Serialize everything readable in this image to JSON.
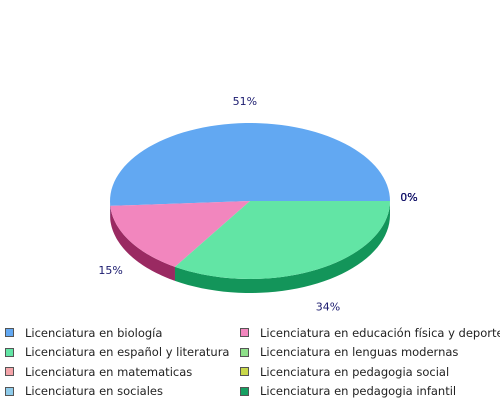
{
  "chart_data": {
    "type": "pie",
    "title": "",
    "categories": [
      "Licenciatura en biología",
      "Licenciatura en educación física y deporte",
      "Licenciatura en español y literatura",
      "Licenciatura en lenguas modernas",
      "Licenciatura en matematicas",
      "Licenciatura en pedagogia social",
      "Licenciatura en sociales",
      "Licenciatura en pedagogia infantil"
    ],
    "values": [
      51,
      15,
      34,
      0,
      0,
      0,
      0,
      0
    ],
    "value_labels": [
      "51%",
      "15%",
      "34%",
      "0%",
      "0%",
      "0%",
      "0%",
      "0%"
    ],
    "colors": [
      "#62a8f2",
      "#f286be",
      "#62e5a5",
      "#8ee08a",
      "#f4a4a9",
      "#c9d84a",
      "#8ecbea",
      "#16a062"
    ],
    "side_colors": [
      "#3a6fa8",
      "#9a2a62",
      "#13955a",
      "#4e9a4a",
      "#a85a60",
      "#7a8a1a",
      "#4a88a8",
      "#0a6a3a"
    ],
    "legend_placement": "bottom",
    "three_d": true
  }
}
